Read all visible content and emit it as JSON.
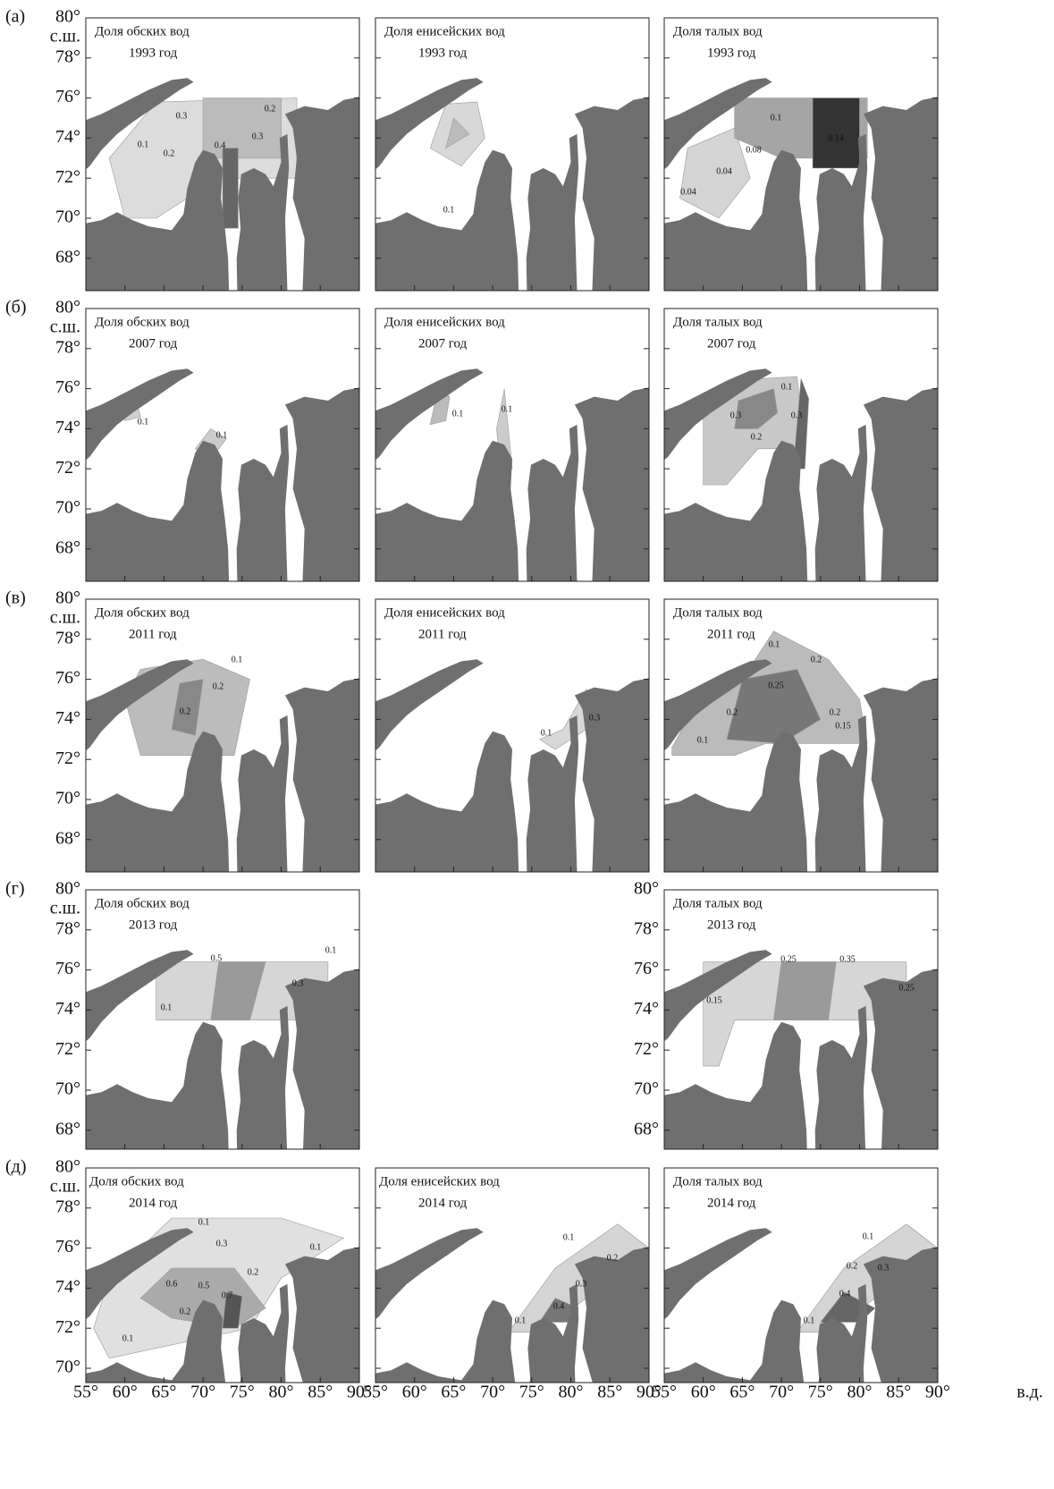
{
  "rows": [
    {
      "label": "(а)",
      "lat_ticks": [
        "80°",
        "78°",
        "76°",
        "74°",
        "72°",
        "70°",
        "68°"
      ],
      "lat_unit": "с.ш.",
      "panels": [
        {
          "title": "Доля обских вод",
          "year": "1993 год",
          "contours": [
            "0.3",
            "0.2",
            "0.1",
            "0.2",
            "0.4",
            "0.3"
          ]
        },
        {
          "title": "Доля енисейских вод",
          "year": "1993 год",
          "contours": [
            "0.1"
          ]
        },
        {
          "title": "Доля талых вод",
          "year": "1993 год",
          "contours": [
            "0.1",
            "0.14",
            "0.08",
            "0.04",
            "0.04"
          ]
        }
      ]
    },
    {
      "label": "(б)",
      "lat_ticks": [
        "80°",
        "78°",
        "76°",
        "74°",
        "72°",
        "70°",
        "68°"
      ],
      "lat_unit": "с.ш.",
      "panels": [
        {
          "title": "Доля обских вод",
          "year": "2007 год",
          "contours": [
            "0.1",
            "0.1"
          ]
        },
        {
          "title": "Доля енисейских вод",
          "year": "2007 год",
          "contours": [
            "0.1",
            "0.1"
          ]
        },
        {
          "title": "Доля талых вод",
          "year": "2007 год",
          "contours": [
            "0.1",
            "0.3",
            "0.3",
            "0.2"
          ]
        }
      ]
    },
    {
      "label": "(в)",
      "lat_ticks": [
        "80°",
        "78°",
        "76°",
        "74°",
        "72°",
        "70°",
        "68°"
      ],
      "lat_unit": "с.ш.",
      "panels": [
        {
          "title": "Доля обских вод",
          "year": "2011 год",
          "contours": [
            "0.1",
            "0.2",
            "0.2"
          ]
        },
        {
          "title": "Доля енисейских вод",
          "year": "2011 год",
          "contours": [
            "0.3",
            "0.1"
          ]
        },
        {
          "title": "Доля талых вод",
          "year": "2011 год",
          "contours": [
            "0.1",
            "0.2",
            "0.25",
            "0.2",
            "0.2",
            "0.15",
            "0.1"
          ]
        }
      ]
    },
    {
      "label": "(г)",
      "lat_ticks": [
        "80°",
        "78°",
        "76°",
        "74°",
        "72°",
        "70°",
        "68°"
      ],
      "lat_unit": "с.ш.",
      "panels": [
        {
          "title": "Доля обских вод",
          "year": "2013 год",
          "contours": [
            "0.1",
            "0.5",
            "0.3",
            "0.1"
          ]
        },
        {
          "title": "Доля талых вод",
          "year": "2013 год",
          "contours": [
            "0.25",
            "0.35",
            "0.25",
            "0.15"
          ],
          "lat_ticks": [
            "80°",
            "78°",
            "76°",
            "74°",
            "72°",
            "70°",
            "68°"
          ]
        }
      ]
    },
    {
      "label": "(д)",
      "lat_ticks": [
        "80°",
        "78°",
        "76°",
        "74°",
        "72°",
        "70°"
      ],
      "lat_unit": "с.ш.",
      "panels": [
        {
          "title": "Доля обских вод",
          "year": "2014 год",
          "contours": [
            "0.1",
            "0.3",
            "0.1",
            "0.2",
            "0.6",
            "0.5",
            "0.7",
            "0.2",
            "0.1"
          ]
        },
        {
          "title": "Доля енисейских вод",
          "year": "2014 год",
          "contours": [
            "0.1",
            "0.2",
            "0.3",
            "0.4",
            "0.1"
          ]
        },
        {
          "title": "Доля талых вод",
          "year": "2014 год",
          "contours": [
            "0.1",
            "0.2",
            "0.3",
            "0.4",
            "0.1"
          ]
        }
      ]
    }
  ],
  "lon_ticks": [
    "55°",
    "60°",
    "65°",
    "70°",
    "75°",
    "80°",
    "85°",
    "90°"
  ],
  "lon_unit": "в.д."
}
